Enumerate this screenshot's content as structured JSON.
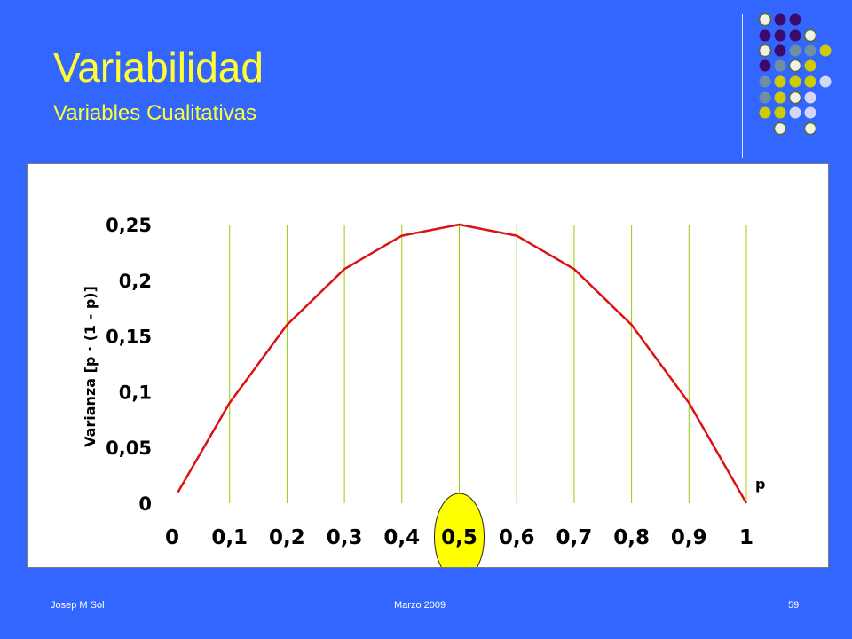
{
  "slide": {
    "title": "Variabilidad",
    "subtitle": "Variables Cualitativas",
    "footer_left": "Josep M Sol",
    "footer_center": "Marzo 2009",
    "page_number": "59"
  },
  "colors": {
    "background": "#3366ff",
    "title": "#ffff33",
    "curve": "#dd1111",
    "gridline": "#99cc00",
    "highlight_fill": "#ffff00",
    "deco_purple": "#3d0a6b",
    "deco_slate": "#6f8fa3",
    "deco_yellow": "#cccc00",
    "deco_lavender": "#d6d6f5"
  },
  "chart_data": {
    "type": "line",
    "title": "",
    "xlabel": "p",
    "ylabel": "Varianza [p · (1 - p)]",
    "xlim": [
      0,
      1
    ],
    "ylim": [
      0,
      0.25
    ],
    "x_tick_labels": [
      "0",
      "0,1",
      "0,2",
      "0,3",
      "0,4",
      "0,5",
      "0,6",
      "0,7",
      "0,8",
      "0,9",
      "1"
    ],
    "y_tick_labels": [
      "0",
      "0,05",
      "0,1",
      "0,15",
      "0,2",
      "0,25"
    ],
    "vertical_gridlines": true,
    "highlighted_tick": "0,5",
    "series": [
      {
        "x": [
          0.01,
          0.1,
          0.2,
          0.3,
          0.4,
          0.5,
          0.6,
          0.7,
          0.8,
          0.9,
          1.0
        ],
        "values": [
          0.0099,
          0.09,
          0.16,
          0.21,
          0.24,
          0.25,
          0.24,
          0.21,
          0.16,
          0.09,
          0
        ]
      }
    ]
  }
}
